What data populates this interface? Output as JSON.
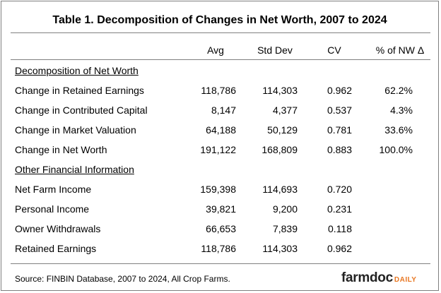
{
  "title": "Table 1.  Decomposition of Changes in Net Worth, 2007 to 2024",
  "columns": {
    "avg": "Avg",
    "std_dev": "Std Dev",
    "cv": "CV",
    "pct": "% of NW Δ"
  },
  "sections": [
    {
      "heading": "Decomposition of Net Worth",
      "rows": [
        {
          "label": "Change in Retained Earnings",
          "avg": "118,786",
          "std_dev": "114,303",
          "cv": "0.962",
          "pct": "62.2%"
        },
        {
          "label": "Change in Contributed Capital",
          "avg": "8,147",
          "std_dev": "4,377",
          "cv": "0.537",
          "pct": "4.3%"
        },
        {
          "label": "Change in Market Valuation",
          "avg": "64,188",
          "std_dev": "50,129",
          "cv": "0.781",
          "pct": "33.6%"
        },
        {
          "label": "Change in Net Worth",
          "avg": "191,122",
          "std_dev": "168,809",
          "cv": "0.883",
          "pct": "100.0%"
        }
      ]
    },
    {
      "heading": "Other Financial Information",
      "rows": [
        {
          "label": "Net Farm Income",
          "avg": "159,398",
          "std_dev": "114,693",
          "cv": "0.720",
          "pct": ""
        },
        {
          "label": "Personal Income",
          "avg": "39,821",
          "std_dev": "9,200",
          "cv": "0.231",
          "pct": ""
        },
        {
          "label": "Owner Withdrawals",
          "avg": "66,653",
          "std_dev": "7,839",
          "cv": "0.118",
          "pct": ""
        },
        {
          "label": "Retained Earnings",
          "avg": "118,786",
          "std_dev": "114,303",
          "cv": "0.962",
          "pct": ""
        }
      ]
    }
  ],
  "source": "Source: FINBIN Database, 2007 to 2024, All Crop Farms.",
  "logo": {
    "part1": "farmdoc",
    "part2": "DAILY"
  },
  "colors": {
    "logo_accent": "#e87722",
    "rule": "#808080"
  }
}
